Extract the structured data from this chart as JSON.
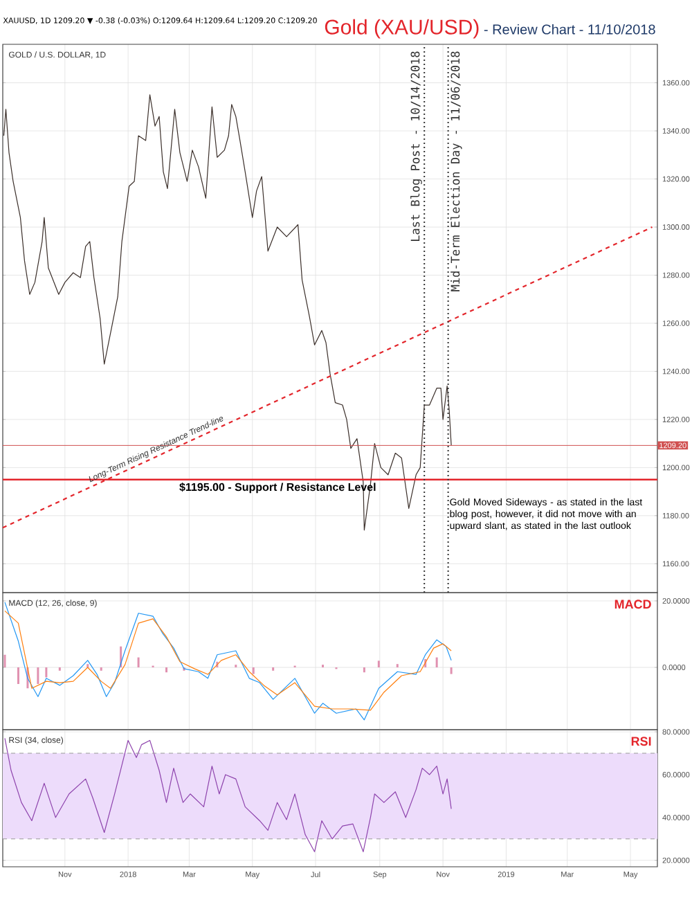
{
  "chart_data": [
    {
      "type": "line",
      "title": "Gold (XAU/USD)",
      "subtitle": "- Review Chart - 11/10/2018",
      "annotations": [
        "XAUUSD, 1D 1209.20 ▼ -0.38 (-0.03%) O:1209.64 H:1209.64 L:1209.20 C:1209.20",
        "GOLD / U.S. DOLLAR, 1D",
        {
          "text": "Long-Term Rising Resistance Trend-line",
          "x": "2018-01-31",
          "y": 1205
        },
        "Gold Moved Sideways - as stated in the last blog post, however, it did not move with an upward slant, as stated in the last outlook"
      ],
      "series": [
        {
          "color": "#3b2f2a",
          "x": [
            "2017-09-03",
            "2017-09-05",
            "2017-09-08",
            "2017-09-12",
            "2017-09-19",
            "2017-09-23",
            "2017-09-28",
            "2017-10-03",
            "2017-10-10",
            "2017-10-12",
            "2017-10-16",
            "2017-10-26",
            "2017-11-01",
            "2017-11-09",
            "2017-11-16",
            "2017-11-21",
            "2017-11-25",
            "2017-11-29",
            "2017-12-05",
            "2017-12-09",
            "2017-12-16",
            "2017-12-22",
            "2017-12-26",
            "2018-01-02",
            "2018-01-07",
            "2018-01-11",
            "2018-01-18",
            "2018-01-22",
            "2018-01-27",
            "2018-01-31",
            "2018-02-04",
            "2018-02-08",
            "2018-02-15",
            "2018-02-20",
            "2018-02-27",
            "2018-03-04",
            "2018-03-10",
            "2018-03-17",
            "2018-03-23",
            "2018-03-28",
            "2018-04-04",
            "2018-04-08",
            "2018-04-11",
            "2018-04-15",
            "2018-04-19",
            "2018-04-24",
            "2018-05-01",
            "2018-05-05",
            "2018-05-10",
            "2018-05-16",
            "2018-05-25",
            "2018-06-03",
            "2018-06-14",
            "2018-06-18",
            "2018-06-25",
            "2018-06-30",
            "2018-07-07",
            "2018-07-11",
            "2018-07-15",
            "2018-07-20",
            "2018-07-27",
            "2018-07-31",
            "2018-08-04",
            "2018-08-10",
            "2018-08-16",
            "2018-08-17",
            "2018-08-23",
            "2018-08-27",
            "2018-09-02",
            "2018-09-09",
            "2018-09-16",
            "2018-09-22",
            "2018-09-29",
            "2018-10-06",
            "2018-10-10",
            "2018-10-14",
            "2018-10-19",
            "2018-10-26",
            "2018-10-30",
            "2018-11-01",
            "2018-11-05",
            "2018-11-07",
            "2018-11-09"
          ],
          "values": [
            1338,
            1349,
            1331,
            1319,
            1304,
            1286,
            1272,
            1277,
            1294,
            1304,
            1283,
            1272,
            1277,
            1281,
            1279,
            1292,
            1294,
            1279,
            1262,
            1243,
            1258,
            1271,
            1294,
            1317,
            1319,
            1338,
            1336,
            1355,
            1342,
            1346,
            1323,
            1316,
            1349,
            1331,
            1319,
            1332,
            1325,
            1312,
            1350,
            1329,
            1332,
            1338,
            1351,
            1346,
            1336,
            1323,
            1304,
            1315,
            1321,
            1290,
            1300,
            1296,
            1301,
            1278,
            1263,
            1251,
            1257,
            1252,
            1239,
            1227,
            1226,
            1220,
            1208,
            1212,
            1194,
            1174,
            1193,
            1210,
            1200,
            1197,
            1206,
            1204,
            1183,
            1197,
            1200,
            1226,
            1226,
            1233,
            1233,
            1220,
            1234,
            1224,
            1209.2
          ]
        },
        {
          "color": "#e3252b",
          "line_style": "dashed",
          "x": [
            "2017-09-02",
            "2019-05-22"
          ],
          "values": [
            1175,
            1300
          ]
        }
      ],
      "xlim": [
        "2017-09-02",
        "2019-05-27"
      ],
      "ylim": [
        1148,
        1376
      ],
      "xticks": [
        {
          "value": "2017-11-01",
          "label": null
        },
        {
          "value": "2018-01-01",
          "label": null
        },
        {
          "value": "2018-03-01",
          "label": null
        },
        {
          "value": "2018-05-01",
          "label": null
        },
        {
          "value": "2018-07-01",
          "label": null
        },
        {
          "value": "2018-09-01",
          "label": null
        },
        {
          "value": "2018-11-01",
          "label": null
        },
        {
          "value": "2019-01-01",
          "label": null
        },
        {
          "value": "2019-03-01",
          "label": null
        },
        {
          "value": "2019-05-01",
          "label": null
        }
      ],
      "yticks": [
        {
          "value": 1160,
          "label": "1160.00"
        },
        {
          "value": 1180,
          "label": "1180.00"
        },
        {
          "value": 1200,
          "label": "1200.00"
        },
        {
          "value": 1220,
          "label": "1220.00"
        },
        {
          "value": 1240,
          "label": "1240.00"
        },
        {
          "value": 1260,
          "label": "1260.00"
        },
        {
          "value": 1280,
          "label": "1280.00"
        },
        {
          "value": 1300,
          "label": "1300.00"
        },
        {
          "value": 1320,
          "label": "1320.00"
        },
        {
          "value": 1340,
          "label": "1340.00"
        },
        {
          "value": 1360,
          "label": "1360.00"
        }
      ],
      "grid": true,
      "tick_labels": "y",
      "ref_lines": [
        {
          "axis": "y",
          "value": 1195,
          "label": "$1195.00 - Support / Resistance Level",
          "color": "#e3252b"
        },
        {
          "axis": "y",
          "value": 1209.2,
          "label": "1209.20",
          "color": "#d05050"
        },
        {
          "axis": "x",
          "value": "2018-10-14",
          "label": "Last Blog Post - 10/14/2018",
          "color": "#333333",
          "line_style": "dotted"
        },
        {
          "axis": "x",
          "value": "2018-11-06",
          "label": "Mid-Term Election Day - 11/06/2018",
          "color": "#333333",
          "line_style": "dotted"
        }
      ]
    },
    {
      "type": "line",
      "title": "MACD",
      "annotations": [
        "MACD (12, 26, close, 9)"
      ],
      "series": [
        {
          "type": "bar",
          "color": "#e091b0",
          "x": [
            "2017-09-04",
            "2017-09-17",
            "2017-09-26",
            "2017-10-06",
            "2017-10-14",
            "2017-10-27",
            "2017-11-23",
            "2017-12-06",
            "2017-12-25",
            "2018-01-11",
            "2018-01-25",
            "2018-02-07",
            "2018-02-24",
            "2018-03-28",
            "2018-04-15",
            "2018-05-02",
            "2018-05-21",
            "2018-06-11",
            "2018-07-08",
            "2018-07-21",
            "2018-08-17",
            "2018-08-31",
            "2018-09-18",
            "2018-10-15",
            "2018-10-26",
            "2018-11-09"
          ],
          "values": [
            3.8,
            -5,
            -6.3,
            -5,
            -3,
            -1,
            1,
            -1,
            6.3,
            3,
            0.5,
            -1.5,
            -1,
            1.7,
            0.8,
            -2,
            -1,
            0.5,
            0.8,
            -0.5,
            -1.5,
            2,
            1,
            2.5,
            3,
            -2
          ]
        },
        {
          "color": "#2196f3",
          "x": [
            "2017-09-04",
            "2017-09-17",
            "2017-09-26",
            "2017-10-06",
            "2017-10-14",
            "2017-10-27",
            "2017-11-09",
            "2017-11-23",
            "2017-12-02",
            "2017-12-11",
            "2017-12-19",
            "2017-12-29",
            "2018-01-11",
            "2018-01-25",
            "2018-02-03",
            "2018-02-14",
            "2018-02-24",
            "2018-03-10",
            "2018-03-19",
            "2018-03-28",
            "2018-04-15",
            "2018-04-28",
            "2018-05-08",
            "2018-05-21",
            "2018-06-11",
            "2018-06-30",
            "2018-07-08",
            "2018-07-21",
            "2018-08-09",
            "2018-08-17",
            "2018-08-31",
            "2018-09-18",
            "2018-10-06",
            "2018-10-15",
            "2018-10-26",
            "2018-11-04",
            "2018-11-09"
          ],
          "values": [
            19.6,
            7.9,
            -3.3,
            -8.8,
            -3.3,
            -5.4,
            -2.5,
            2.1,
            -2.1,
            -8.8,
            -4.6,
            5,
            16.3,
            15.4,
            10.4,
            5.8,
            -0.4,
            -1.3,
            -3.3,
            3.8,
            5,
            -3.3,
            -4.6,
            -9.6,
            -3.3,
            -13.8,
            -10.8,
            -13.8,
            -12.5,
            -15.8,
            -6.3,
            -1.3,
            -2.1,
            3.8,
            8.3,
            6.3,
            2.1
          ]
        },
        {
          "color": "#ff7f0e",
          "x": [
            "2017-09-04",
            "2017-09-17",
            "2017-09-30",
            "2017-10-14",
            "2017-10-27",
            "2017-11-09",
            "2017-11-23",
            "2017-12-06",
            "2017-12-15",
            "2017-12-29",
            "2018-01-11",
            "2018-01-25",
            "2018-02-07",
            "2018-02-20",
            "2018-03-06",
            "2018-03-19",
            "2018-04-01",
            "2018-04-15",
            "2018-04-28",
            "2018-05-12",
            "2018-05-25",
            "2018-06-11",
            "2018-06-30",
            "2018-07-17",
            "2018-08-04",
            "2018-08-23",
            "2018-09-05",
            "2018-09-22",
            "2018-10-10",
            "2018-10-23",
            "2018-11-01",
            "2018-11-09"
          ],
          "values": [
            17,
            13.3,
            -6.3,
            -4.2,
            -4.6,
            -4.2,
            0,
            -4.2,
            -6.3,
            0.8,
            13.3,
            14.6,
            9.2,
            1.7,
            -0.4,
            -2.1,
            2.1,
            3.8,
            -1.3,
            -5.4,
            -8.3,
            -4.6,
            -11.7,
            -12.5,
            -12.5,
            -12.9,
            -7.5,
            -2.5,
            -1.3,
            5.8,
            7.1,
            5
          ]
        }
      ],
      "xlim": [
        "2017-09-02",
        "2019-05-27"
      ],
      "ylim": [
        -18.75,
        22.5
      ],
      "xticks": [
        {
          "value": "2017-11-01",
          "label": null
        },
        {
          "value": "2018-01-01",
          "label": null
        },
        {
          "value": "2018-03-01",
          "label": null
        },
        {
          "value": "2018-05-01",
          "label": null
        },
        {
          "value": "2018-07-01",
          "label": null
        },
        {
          "value": "2018-09-01",
          "label": null
        },
        {
          "value": "2018-11-01",
          "label": null
        },
        {
          "value": "2019-01-01",
          "label": null
        },
        {
          "value": "2019-03-01",
          "label": null
        },
        {
          "value": "2019-05-01",
          "label": null
        }
      ],
      "yticks": [
        {
          "value": 0,
          "label": "0.0000"
        },
        {
          "value": 20,
          "label": "20.0000"
        }
      ],
      "grid": true,
      "tick_labels": "y"
    },
    {
      "type": "line",
      "title": "RSI",
      "annotations": [
        "RSI (34, close)"
      ],
      "series": [
        {
          "color": "#8e44ad",
          "x": [
            "2017-09-04",
            "2017-09-10",
            "2017-09-20",
            "2017-09-30",
            "2017-10-12",
            "2017-10-23",
            "2017-11-05",
            "2017-11-21",
            "2017-11-28",
            "2017-12-09",
            "2017-12-19",
            "2018-01-01",
            "2018-01-09",
            "2018-01-14",
            "2018-01-22",
            "2018-01-31",
            "2018-02-07",
            "2018-02-14",
            "2018-02-23",
            "2018-03-02",
            "2018-03-15",
            "2018-03-23",
            "2018-03-30",
            "2018-04-05",
            "2018-04-15",
            "2018-04-24",
            "2018-05-08",
            "2018-05-16",
            "2018-05-25",
            "2018-06-03",
            "2018-06-11",
            "2018-06-21",
            "2018-06-30",
            "2018-07-07",
            "2018-07-17",
            "2018-07-27",
            "2018-08-06",
            "2018-08-16",
            "2018-08-23",
            "2018-08-27",
            "2018-09-05",
            "2018-09-16",
            "2018-09-26",
            "2018-10-06",
            "2018-10-12",
            "2018-10-19",
            "2018-10-26",
            "2018-11-01",
            "2018-11-05",
            "2018-11-09"
          ],
          "values": [
            77,
            62,
            47,
            38.5,
            56,
            40,
            51,
            58,
            49,
            33,
            51,
            76,
            68,
            74,
            76,
            62,
            47,
            63,
            47,
            51,
            45,
            64,
            51,
            60,
            58,
            45,
            38.5,
            34,
            47,
            39,
            51,
            32,
            24,
            38.5,
            30,
            36,
            37,
            24,
            40,
            51,
            47,
            52,
            40,
            53,
            63,
            60,
            64,
            51,
            58,
            44
          ]
        }
      ],
      "xlim": [
        "2017-09-02",
        "2019-05-27"
      ],
      "ylim": [
        17,
        81
      ],
      "xticks": [
        {
          "value": "2017-11-01",
          "label": "Nov"
        },
        {
          "value": "2018-01-01",
          "label": "2018"
        },
        {
          "value": "2018-03-01",
          "label": "Mar"
        },
        {
          "value": "2018-05-01",
          "label": "May"
        },
        {
          "value": "2018-07-01",
          "label": "Jul"
        },
        {
          "value": "2018-09-01",
          "label": "Sep"
        },
        {
          "value": "2018-11-01",
          "label": "Nov"
        },
        {
          "value": "2019-01-01",
          "label": "2019"
        },
        {
          "value": "2019-03-01",
          "label": "Mar"
        },
        {
          "value": "2019-05-01",
          "label": "May"
        }
      ],
      "yticks": [
        {
          "value": 20,
          "label": "20.0000"
        },
        {
          "value": 40,
          "label": "40.0000"
        },
        {
          "value": 60,
          "label": "60.0000"
        },
        {
          "value": 80,
          "label": "80.0000"
        }
      ],
      "grid": true,
      "bands": [
        {
          "axis": "y",
          "from": 30,
          "to": 70,
          "color": "#eddcfb"
        }
      ],
      "ref_lines": [
        {
          "axis": "y",
          "value": 70,
          "color": "#999999",
          "line_style": "dashed"
        },
        {
          "axis": "y",
          "value": 30,
          "color": "#999999",
          "line_style": "dashed"
        }
      ]
    }
  ]
}
